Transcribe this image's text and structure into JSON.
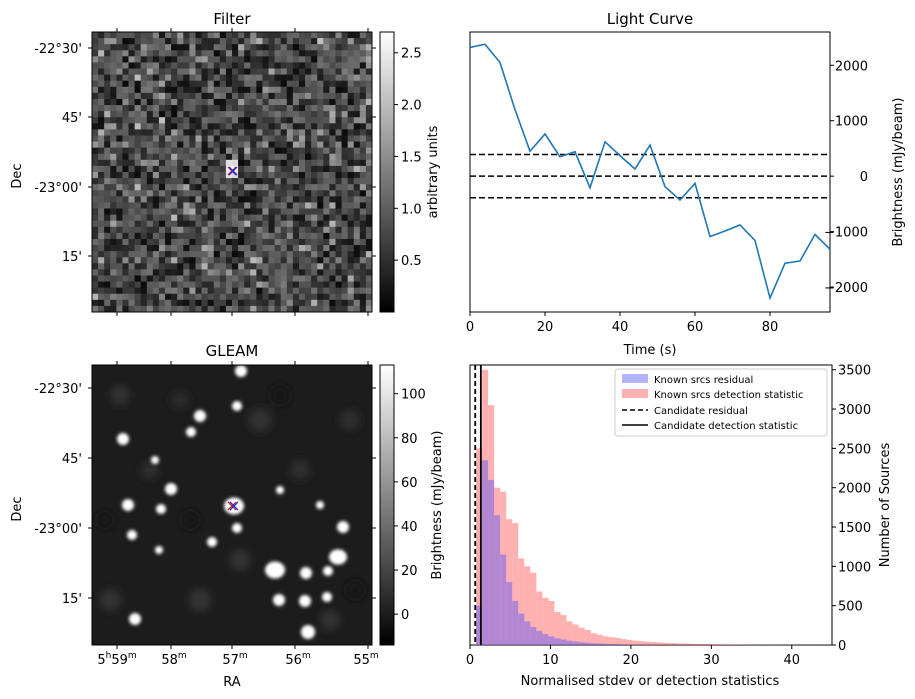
{
  "chart_data": [
    {
      "type": "heatmap",
      "title": "Filter",
      "ylabel": "Dec",
      "yticks": [
        "-22°30'",
        "45'",
        "-23°00'",
        "15'"
      ],
      "colorbar": {
        "label": "arbitrary units",
        "range": [
          0.0,
          2.7
        ],
        "ticks": [
          "0.5",
          "1.0",
          "1.5",
          "2.0",
          "2.5"
        ]
      },
      "markers": [
        {
          "symbol": "x",
          "color": "#d62728"
        },
        {
          "symbol": "x",
          "color": "#1f2fd6"
        }
      ]
    },
    {
      "type": "line",
      "title": "Light Curve",
      "xlabel": "Time (s)",
      "ylabel": "Brightness (mJy/beam)",
      "xlim": [
        0,
        96
      ],
      "ylim": [
        -2450,
        2600
      ],
      "xticks": [
        0,
        20,
        40,
        60,
        80
      ],
      "yticks": [
        -2000,
        -1000,
        0,
        1000,
        2000
      ],
      "x": [
        0,
        4,
        8,
        12,
        16,
        20,
        24,
        28,
        32,
        36,
        40,
        44,
        48,
        52,
        56,
        60,
        64,
        68,
        72,
        76,
        80,
        84,
        88,
        92,
        96
      ],
      "series": [
        {
          "color": "#1f77b4",
          "values": [
            2320,
            2380,
            2050,
            1200,
            450,
            760,
            350,
            440,
            -210,
            620,
            370,
            130,
            560,
            -190,
            -430,
            -130,
            -1090,
            -990,
            -880,
            -1160,
            -2200,
            -1570,
            -1530,
            -1050,
            -1320
          ]
        }
      ],
      "hlines": [
        390,
        0,
        -390
      ],
      "hline_style": "dashed"
    },
    {
      "type": "heatmap",
      "title": "GLEAM",
      "xlabel": "RA",
      "ylabel": "Dec",
      "yticks": [
        "-22°30'",
        "45'",
        "-23°00'",
        "15'"
      ],
      "xticks": [
        {
          "main": "5",
          "sup1": "h",
          "main2": "59",
          "sup2": "m"
        },
        {
          "main": "58",
          "sup1": "m"
        },
        {
          "main": "57",
          "sup1": "m"
        },
        {
          "main": "56",
          "sup1": "m"
        },
        {
          "main": "55",
          "sup1": "m"
        }
      ],
      "colorbar": {
        "label": "Brightness (mJy/beam)",
        "range": [
          -14,
          113
        ],
        "ticks": [
          "0",
          "20",
          "40",
          "60",
          "80",
          "100"
        ]
      },
      "markers": [
        {
          "symbol": "x",
          "color": "#d62728"
        },
        {
          "symbol": "x",
          "color": "#1f2fd6"
        }
      ]
    },
    {
      "type": "histogram",
      "xlabel": "Normalised stdev or detection statistics",
      "ylabel": "Number of Sources",
      "xlim": [
        0,
        45
      ],
      "ylim": [
        0,
        3560
      ],
      "xticks": [
        0,
        10,
        20,
        30,
        40
      ],
      "yticks": [
        0,
        500,
        1000,
        1500,
        2000,
        2500,
        3000,
        3500
      ],
      "bin_width": 0.75,
      "series": [
        {
          "name": "Known srcs residual",
          "color": "#5555ff",
          "alpha": 0.45,
          "values": [
            0,
            500,
            2350,
            2100,
            1650,
            1150,
            800,
            560,
            400,
            300,
            230,
            180,
            140,
            110,
            85,
            70,
            55,
            45,
            35,
            28,
            22,
            18,
            14,
            12,
            10,
            8,
            6,
            5,
            4,
            3,
            3,
            2,
            2,
            1,
            1,
            1
          ]
        },
        {
          "name": "Known srcs detection statistic",
          "color": "#ff7070",
          "alpha": 0.55,
          "values": [
            0,
            2500,
            3500,
            3050,
            2000,
            1950,
            1600,
            1550,
            1100,
            1000,
            920,
            680,
            600,
            560,
            420,
            380,
            300,
            260,
            220,
            190,
            150,
            130,
            110,
            100,
            90,
            75,
            65,
            55,
            48,
            42,
            38,
            32,
            28,
            24,
            20,
            18,
            16,
            14,
            12,
            10,
            9,
            8,
            7,
            6,
            6,
            5,
            5,
            4,
            4,
            4,
            3,
            3,
            3,
            3,
            2,
            2,
            2,
            2,
            2,
            2
          ]
        }
      ],
      "vlines": [
        {
          "name": "Candidate residual",
          "x": 0.65,
          "style": "dashed"
        },
        {
          "name": "Candidate detection statistic",
          "x": 1.35,
          "style": "solid"
        }
      ],
      "legend": "top-right"
    }
  ]
}
